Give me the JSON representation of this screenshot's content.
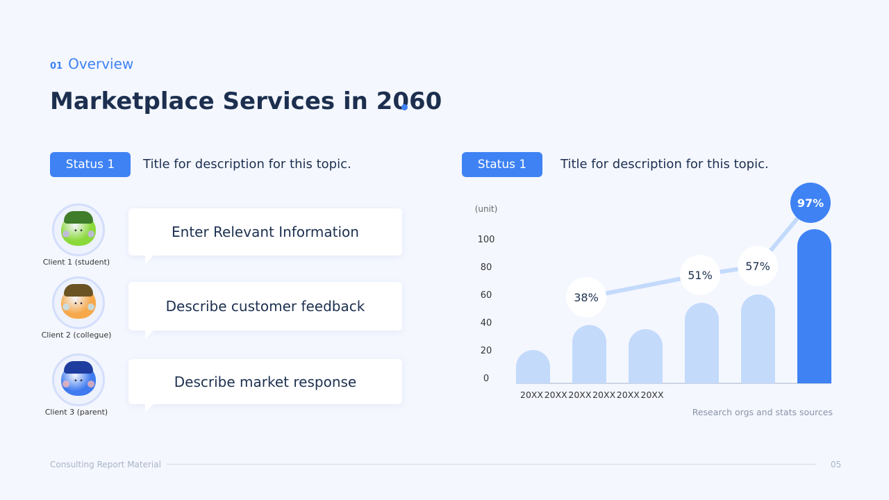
{
  "header": {
    "section_num": "01",
    "section": "Overview",
    "title": "Marketplace Services in 2060"
  },
  "left": {
    "badge": "Status 1",
    "title": "Title for description for this topic.",
    "clients": [
      {
        "label": "Client 1 (student)",
        "message_prefix": "Enter ",
        "message": "Relevant Information",
        "color": "#8bd93a",
        "cap": "#3f7d2a",
        "cheek": "#c7b4f5"
      },
      {
        "label": "Client 2 (collegue)",
        "message_prefix": "",
        "message": "Describe customer feedback",
        "color": "#f6a84a",
        "cap": "#6b5324",
        "cheek": "#bfe3f7"
      },
      {
        "label": "Client 3 (parent)",
        "message_prefix": "",
        "message": "Describe market response",
        "color": "#3f7bef",
        "cap": "#1f3d9e",
        "cheek": "#f4b5b5"
      }
    ]
  },
  "right": {
    "badge": "Status 1",
    "title": "Title for description for this topic."
  },
  "chart_data": {
    "type": "bar",
    "unit_label": "(unit)",
    "categories": [
      "20XX",
      "20XX",
      "20XX",
      "20XX",
      "20XX",
      "20XX"
    ],
    "values": [
      23,
      41,
      38,
      57,
      63,
      110
    ],
    "yticks": [
      0,
      20,
      40,
      60,
      80,
      100
    ],
    "ylim": [
      0,
      100
    ],
    "annotations": [
      {
        "index": 1,
        "label": "38%"
      },
      {
        "index": 3,
        "label": "51%"
      },
      {
        "index": 4,
        "label": "57%"
      },
      {
        "index": 5,
        "label": "97%"
      }
    ],
    "source": "Research orgs and stats sources",
    "highlight_color": "#3e82f4",
    "bar_color": "#c3dafb",
    "grid": false
  },
  "footer": {
    "text": "Consulting Report Material",
    "page": "05"
  }
}
